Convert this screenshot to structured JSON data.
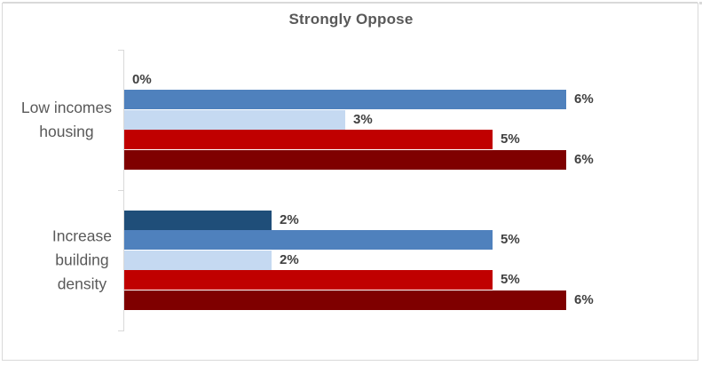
{
  "chart_data": {
    "type": "bar",
    "orientation": "horizontal",
    "title": "Strongly Oppose",
    "categories": [
      "Low incomes housing",
      "Increase building density"
    ],
    "categories_lines": [
      [
        "Low incomes",
        "housing"
      ],
      [
        "Increase",
        "building",
        "density"
      ]
    ],
    "series": [
      {
        "name": "navy",
        "color": "#1F4E79",
        "values": [
          0,
          2
        ]
      },
      {
        "name": "medium-blue",
        "color": "#4F81BD",
        "values": [
          6,
          5
        ]
      },
      {
        "name": "light-blue",
        "color": "#C5D9F1",
        "values": [
          3,
          2
        ]
      },
      {
        "name": "red",
        "color": "#C00000",
        "values": [
          5,
          5
        ]
      },
      {
        "name": "dark-red",
        "color": "#7F0000",
        "values": [
          6,
          6
        ]
      }
    ],
    "data_labels": {
      "Low incomes housing": [
        "0%",
        "6%",
        "3%",
        "5%",
        "6%"
      ],
      "Increase building density": [
        "2%",
        "5%",
        "2%",
        "5%",
        "6%"
      ]
    },
    "value_suffix": "%",
    "xlim": [
      0,
      7.8
    ],
    "legend": "none",
    "grid": "off"
  },
  "styles": {
    "title_color": "#595959",
    "data_label_color": "#404040",
    "category_label_color": "#595959",
    "axis_color": "#d9d9d9",
    "border_color": "#d9d9d9",
    "background_color": "#ffffff"
  }
}
